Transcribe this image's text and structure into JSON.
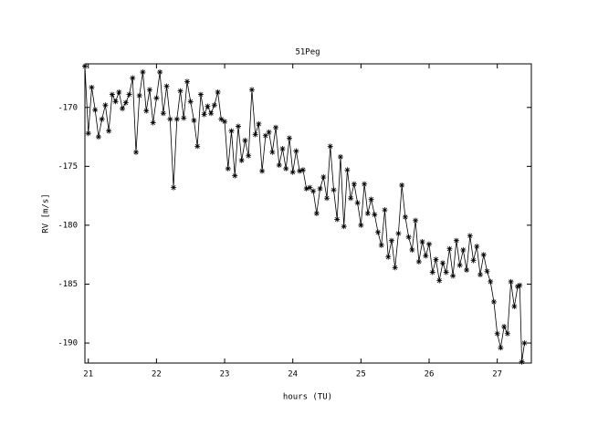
{
  "chart_data": {
    "type": "line",
    "title": "51Peg",
    "xlabel": "hours (TU)",
    "ylabel": "RV [m/s]",
    "x": [
      20.95,
      21.0,
      21.05,
      21.1,
      21.15,
      21.2,
      21.25,
      21.3,
      21.35,
      21.4,
      21.45,
      21.5,
      21.55,
      21.6,
      21.65,
      21.7,
      21.75,
      21.8,
      21.85,
      21.9,
      21.95,
      22.0,
      22.05,
      22.1,
      22.15,
      22.2,
      22.25,
      22.3,
      22.35,
      22.4,
      22.45,
      22.5,
      22.55,
      22.6,
      22.65,
      22.7,
      22.75,
      22.8,
      22.85,
      22.9,
      22.95,
      23.0,
      23.05,
      23.1,
      23.15,
      23.2,
      23.25,
      23.3,
      23.35,
      23.4,
      23.45,
      23.5,
      23.55,
      23.6,
      23.65,
      23.7,
      23.75,
      23.8,
      23.85,
      23.9,
      23.95,
      24.0,
      24.05,
      24.1,
      24.15,
      24.2,
      24.25,
      24.3,
      24.35,
      24.4,
      24.45,
      24.5,
      24.55,
      24.6,
      24.65,
      24.7,
      24.75,
      24.8,
      24.85,
      24.9,
      24.95,
      25.0,
      25.05,
      25.1,
      25.15,
      25.2,
      25.25,
      25.3,
      25.35,
      25.4,
      25.45,
      25.5,
      25.55,
      25.6,
      25.65,
      25.7,
      25.75,
      25.8,
      25.85,
      25.9,
      25.95,
      26.0,
      26.05,
      26.1,
      26.15,
      26.2,
      26.25,
      26.3,
      26.35,
      26.4,
      26.45,
      26.5,
      26.55,
      26.6,
      26.65,
      26.7,
      26.75,
      26.8,
      26.85,
      26.9,
      26.95,
      27.0,
      27.05,
      27.1,
      27.15,
      27.2,
      27.25,
      27.3,
      27.33,
      27.36,
      27.4
    ],
    "series": [
      {
        "color": "#000000",
        "values": [
          -166.5,
          -172.2,
          -168.3,
          -170.2,
          -172.5,
          -171.0,
          -169.8,
          -172.0,
          -168.9,
          -169.5,
          -168.7,
          -170.1,
          -169.6,
          -168.9,
          -167.5,
          -173.8,
          -169.0,
          -167.0,
          -170.3,
          -168.5,
          -171.3,
          -169.2,
          -167.0,
          -170.5,
          -168.2,
          -171.0,
          -176.8,
          -171.0,
          -168.6,
          -170.9,
          -167.8,
          -169.5,
          -171.1,
          -173.3,
          -168.9,
          -170.6,
          -169.9,
          -170.5,
          -169.8,
          -168.7,
          -171.0,
          -171.2,
          -175.2,
          -172.0,
          -175.8,
          -171.6,
          -174.5,
          -172.8,
          -174.1,
          -168.5,
          -172.3,
          -171.4,
          -175.4,
          -172.4,
          -172.1,
          -173.8,
          -171.7,
          -174.9,
          -173.5,
          -175.2,
          -172.6,
          -175.5,
          -173.7,
          -175.4,
          -175.3,
          -176.9,
          -176.8,
          -177.1,
          -179.0,
          -176.9,
          -175.9,
          -177.7,
          -173.3,
          -177.0,
          -179.5,
          -174.2,
          -180.1,
          -175.3,
          -177.7,
          -176.5,
          -178.1,
          -180.0,
          -176.5,
          -179.0,
          -177.8,
          -179.1,
          -180.6,
          -181.7,
          -178.7,
          -182.7,
          -181.3,
          -183.6,
          -180.7,
          -176.6,
          -179.3,
          -181.0,
          -182.1,
          -179.6,
          -183.1,
          -181.4,
          -182.6,
          -181.6,
          -184.0,
          -182.9,
          -184.7,
          -183.2,
          -184.0,
          -182.0,
          -184.3,
          -181.3,
          -183.4,
          -182.1,
          -183.8,
          -180.9,
          -183.0,
          -181.8,
          -184.2,
          -182.5,
          -183.9,
          -184.8,
          -186.5,
          -189.2,
          -190.4,
          -188.6,
          -189.2,
          -184.8,
          -186.9,
          -185.2,
          -185.1,
          -191.6,
          -190.0
        ]
      }
    ],
    "xlim": [
      20.95,
      27.5
    ],
    "xticks": [
      21,
      22,
      23,
      24,
      25,
      26,
      27
    ],
    "ylim": [
      -191.7,
      -166.3
    ],
    "yticks": [
      -170,
      -175,
      -180,
      -185,
      -190
    ]
  }
}
